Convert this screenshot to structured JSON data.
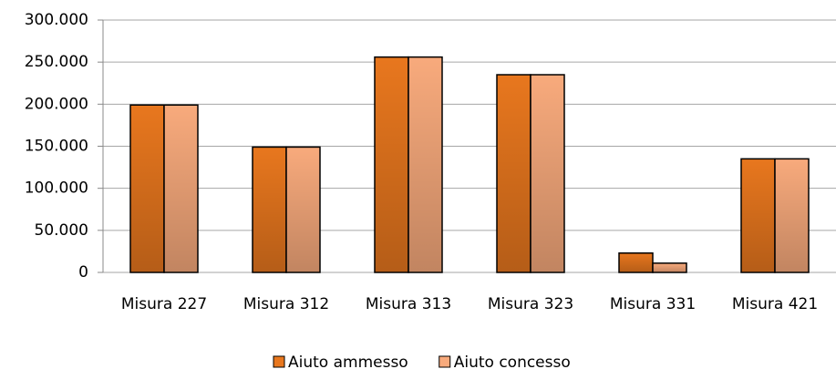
{
  "chart_data": {
    "type": "bar",
    "categories": [
      "Misura 227",
      "Misura 312",
      "Misura 313",
      "Misura 323",
      "Misura 331",
      "Misura 421"
    ],
    "series": [
      {
        "name": "Aiuto ammesso",
        "color": "#e8771e",
        "values": [
          199000,
          149000,
          256000,
          235000,
          23000,
          135000
        ]
      },
      {
        "name": "Aiuto concesso",
        "color": "#f8aa7c",
        "values": [
          199000,
          149000,
          256000,
          235000,
          11000,
          135000
        ]
      }
    ],
    "ylim": [
      0,
      300000
    ],
    "yticks": [
      0,
      {
        "value": 50000,
        "label": "50.000"
      },
      {
        "value": 100000,
        "label": "100.000"
      },
      {
        "value": 150000,
        "label": "150.000"
      },
      {
        "value": 200000,
        "label": "200.000"
      },
      {
        "value": 250000,
        "label": "250.000"
      },
      {
        "value": 300000,
        "label": "300.000"
      }
    ],
    "grid": true,
    "legend": "bottom"
  }
}
